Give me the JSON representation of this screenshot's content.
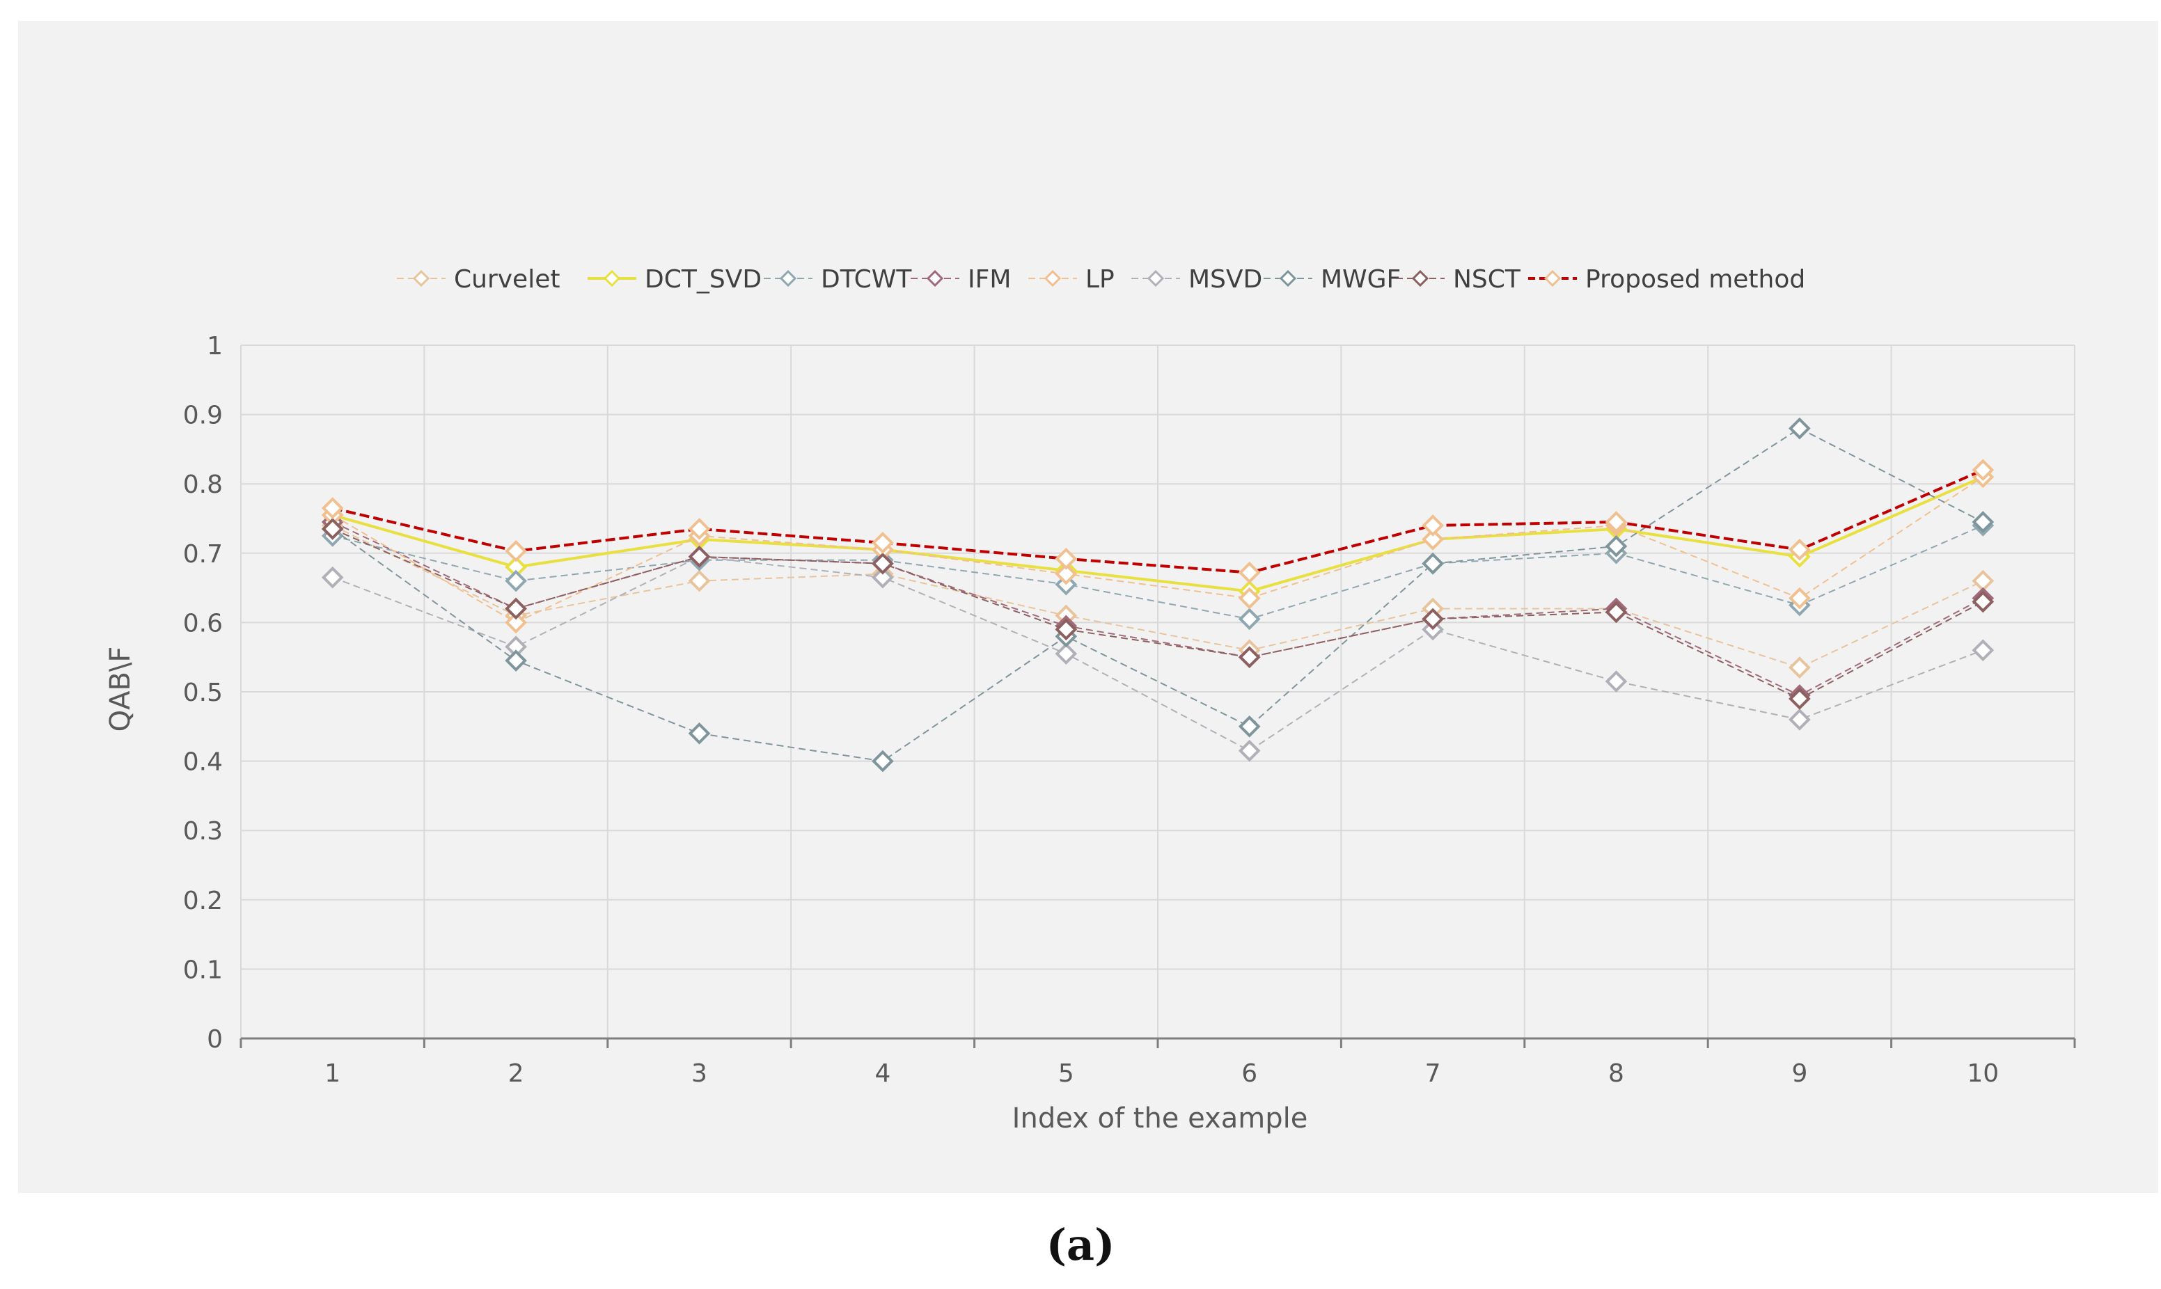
{
  "caption": "(a)",
  "chart_data": {
    "type": "line",
    "title": "",
    "xlabel": "Index of the example",
    "ylabel": "QAB\\F",
    "ylim": [
      0,
      1
    ],
    "y_ticks": [
      "0",
      "0.1",
      "0.2",
      "0.3",
      "0.4",
      "0.5",
      "0.6",
      "0.7",
      "0.8",
      "0.9",
      "1"
    ],
    "categories": [
      "1",
      "2",
      "3",
      "4",
      "5",
      "6",
      "7",
      "8",
      "9",
      "10"
    ],
    "grid": true,
    "legend_position": "top",
    "series": [
      {
        "name": "Curvelet",
        "color": "#e8c49c",
        "dash": true,
        "width": 2,
        "values": [
          0.74,
          0.61,
          0.66,
          0.67,
          0.61,
          0.56,
          0.62,
          0.62,
          0.535,
          0.66
        ]
      },
      {
        "name": "DCT_SVD",
        "color": "#e8e040",
        "dash": false,
        "width": 4,
        "values": [
          0.755,
          0.68,
          0.72,
          0.705,
          0.675,
          0.645,
          0.72,
          0.735,
          0.695,
          0.81
        ]
      },
      {
        "name": "DTCWT",
        "color": "#8fa7b0",
        "dash": true,
        "width": 2,
        "values": [
          0.725,
          0.66,
          0.69,
          0.69,
          0.655,
          0.605,
          0.685,
          0.7,
          0.625,
          0.74
        ]
      },
      {
        "name": "IFM",
        "color": "#a06a7a",
        "dash": true,
        "width": 2,
        "values": [
          0.745,
          0.62,
          0.695,
          0.685,
          0.595,
          0.55,
          0.605,
          0.62,
          0.495,
          0.635
        ]
      },
      {
        "name": "LP",
        "color": "#f0c090",
        "dash": true,
        "width": 2,
        "values": [
          0.755,
          0.6,
          0.725,
          0.705,
          0.67,
          0.635,
          0.72,
          0.74,
          0.635,
          0.81
        ]
      },
      {
        "name": "MSVD",
        "color": "#b0b0b8",
        "dash": true,
        "width": 2,
        "values": [
          0.665,
          0.565,
          0.695,
          0.665,
          0.555,
          0.415,
          0.59,
          0.515,
          0.46,
          0.56
        ]
      },
      {
        "name": "MWGF",
        "color": "#7f959c",
        "dash": true,
        "width": 2,
        "values": [
          0.735,
          0.545,
          0.44,
          0.4,
          0.58,
          0.45,
          0.685,
          0.71,
          0.88,
          0.745
        ]
      },
      {
        "name": "NSCT",
        "color": "#8c6060",
        "dash": true,
        "width": 2,
        "values": [
          0.735,
          0.62,
          0.695,
          0.685,
          0.59,
          0.55,
          0.605,
          0.615,
          0.49,
          0.63
        ]
      },
      {
        "name": "Proposed method",
        "color": "#c00000",
        "dash": true,
        "width": 4,
        "marker_color": "#f0c090",
        "values": [
          0.765,
          0.703,
          0.735,
          0.715,
          0.692,
          0.672,
          0.74,
          0.745,
          0.705,
          0.82
        ]
      }
    ]
  }
}
